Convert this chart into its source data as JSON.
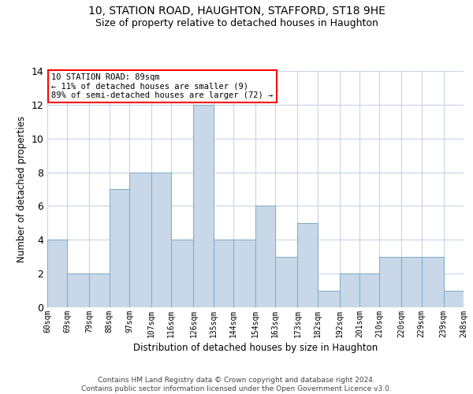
{
  "title1": "10, STATION ROAD, HAUGHTON, STAFFORD, ST18 9HE",
  "title2": "Size of property relative to detached houses in Haughton",
  "xlabel": "Distribution of detached houses by size in Haughton",
  "ylabel": "Number of detached properties",
  "bar_color": "#c8d8e8",
  "bar_edge_color": "#7aaac8",
  "bins": [
    60,
    69,
    79,
    88,
    97,
    107,
    116,
    126,
    135,
    144,
    154,
    163,
    173,
    182,
    192,
    201,
    210,
    220,
    229,
    239,
    248
  ],
  "values": [
    4,
    2,
    2,
    7,
    8,
    8,
    4,
    12,
    4,
    4,
    6,
    3,
    5,
    1,
    2,
    2,
    3,
    3,
    3,
    1
  ],
  "xlabels": [
    "60sqm",
    "69sqm",
    "79sqm",
    "88sqm",
    "97sqm",
    "107sqm",
    "116sqm",
    "126sqm",
    "135sqm",
    "144sqm",
    "154sqm",
    "163sqm",
    "173sqm",
    "182sqm",
    "192sqm",
    "201sqm",
    "210sqm",
    "220sqm",
    "229sqm",
    "239sqm",
    "248sqm"
  ],
  "ylim": [
    0,
    14
  ],
  "yticks": [
    0,
    2,
    4,
    6,
    8,
    10,
    12,
    14
  ],
  "annotation_text": "10 STATION ROAD: 89sqm\n← 11% of detached houses are smaller (9)\n89% of semi-detached houses are larger (72) →",
  "grid_color": "#c8d4e8",
  "footer": "Contains HM Land Registry data © Crown copyright and database right 2024.\nContains public sector information licensed under the Open Government Licence v3.0."
}
